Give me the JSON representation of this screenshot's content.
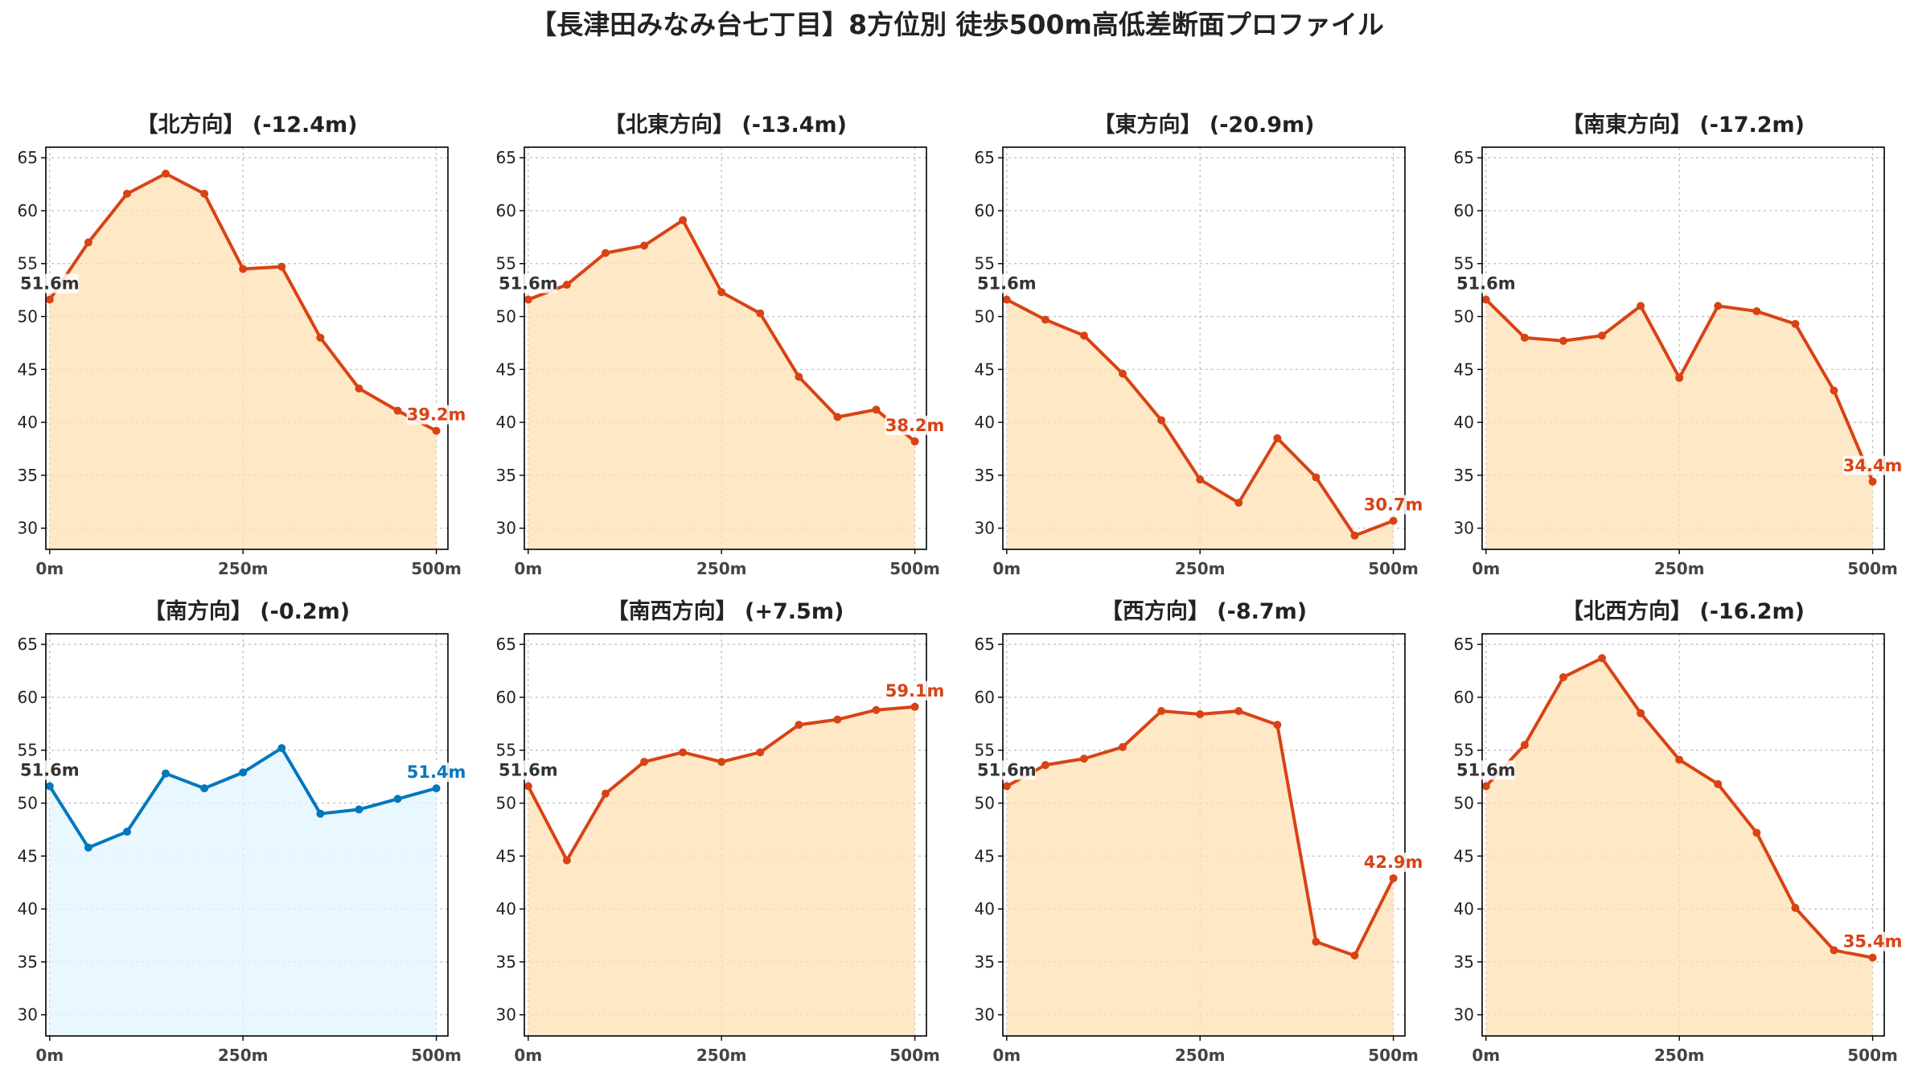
{
  "suptitle": "【長津田みなみ台七丁目】8方位別 徒歩500m高低差断面プロファイル",
  "colors": {
    "down_line": "#D84315",
    "down_fill": "#FFE0B2",
    "up_line": "#D84315",
    "up_fill": "#FFE0B2",
    "flat_line": "#0277BD",
    "flat_fill": "#E1F5FE",
    "start_label": "#333333",
    "axis": "#000000",
    "grid": "#BDBDBD",
    "text": "#222222"
  },
  "chart_data": [
    {
      "type": "line",
      "title": "【北方向】 (-12.4m)",
      "x": [
        0,
        50,
        100,
        150,
        200,
        250,
        300,
        350,
        400,
        450,
        500
      ],
      "y": [
        51.6,
        57.0,
        61.6,
        63.5,
        61.6,
        54.5,
        54.7,
        48.0,
        43.2,
        41.1,
        39.2
      ],
      "start_label": "51.6m",
      "end_label": "39.2m",
      "trend": "down",
      "xlim": [
        -5,
        515
      ],
      "ylim": [
        28,
        66
      ],
      "xticks": [
        0,
        250,
        500
      ],
      "xtick_labels": [
        "0m",
        "250m",
        "500m"
      ],
      "yticks": [
        30,
        35,
        40,
        45,
        50,
        55,
        60,
        65
      ],
      "grid": true
    },
    {
      "type": "line",
      "title": "【北東方向】 (-13.4m)",
      "x": [
        0,
        50,
        100,
        150,
        200,
        250,
        300,
        350,
        400,
        450,
        500
      ],
      "y": [
        51.6,
        53.0,
        56.0,
        56.7,
        59.1,
        52.3,
        50.3,
        44.3,
        40.5,
        41.2,
        38.2
      ],
      "start_label": "51.6m",
      "end_label": "38.2m",
      "trend": "down",
      "xlim": [
        -5,
        515
      ],
      "ylim": [
        28,
        66
      ],
      "xticks": [
        0,
        250,
        500
      ],
      "xtick_labels": [
        "0m",
        "250m",
        "500m"
      ],
      "yticks": [
        30,
        35,
        40,
        45,
        50,
        55,
        60,
        65
      ],
      "grid": true
    },
    {
      "type": "line",
      "title": "【東方向】 (-20.9m)",
      "x": [
        0,
        50,
        100,
        150,
        200,
        250,
        300,
        350,
        400,
        450,
        500
      ],
      "y": [
        51.6,
        49.7,
        48.2,
        44.6,
        40.2,
        34.6,
        32.4,
        38.5,
        34.8,
        29.3,
        30.7
      ],
      "start_label": "51.6m",
      "end_label": "30.7m",
      "trend": "down",
      "xlim": [
        -5,
        515
      ],
      "ylim": [
        28,
        66
      ],
      "xticks": [
        0,
        250,
        500
      ],
      "xtick_labels": [
        "0m",
        "250m",
        "500m"
      ],
      "yticks": [
        30,
        35,
        40,
        45,
        50,
        55,
        60,
        65
      ],
      "grid": true
    },
    {
      "type": "line",
      "title": "【南東方向】 (-17.2m)",
      "x": [
        0,
        50,
        100,
        150,
        200,
        250,
        300,
        350,
        400,
        450,
        500
      ],
      "y": [
        51.6,
        48.0,
        47.7,
        48.2,
        51.0,
        44.2,
        51.0,
        50.5,
        49.3,
        43.0,
        34.4
      ],
      "start_label": "51.6m",
      "end_label": "34.4m",
      "trend": "down",
      "xlim": [
        -5,
        515
      ],
      "ylim": [
        28,
        66
      ],
      "xticks": [
        0,
        250,
        500
      ],
      "xtick_labels": [
        "0m",
        "250m",
        "500m"
      ],
      "yticks": [
        30,
        35,
        40,
        45,
        50,
        55,
        60,
        65
      ],
      "grid": true
    },
    {
      "type": "line",
      "title": "【南方向】 (-0.2m)",
      "x": [
        0,
        50,
        100,
        150,
        200,
        250,
        300,
        350,
        400,
        450,
        500
      ],
      "y": [
        51.6,
        45.8,
        47.3,
        52.8,
        51.4,
        52.9,
        55.2,
        49.0,
        49.4,
        50.4,
        51.4
      ],
      "start_label": "51.6m",
      "end_label": "51.4m",
      "trend": "flat",
      "xlim": [
        -5,
        515
      ],
      "ylim": [
        28,
        66
      ],
      "xticks": [
        0,
        250,
        500
      ],
      "xtick_labels": [
        "0m",
        "250m",
        "500m"
      ],
      "yticks": [
        30,
        35,
        40,
        45,
        50,
        55,
        60,
        65
      ],
      "grid": true
    },
    {
      "type": "line",
      "title": "【南西方向】 (+7.5m)",
      "x": [
        0,
        50,
        100,
        150,
        200,
        250,
        300,
        350,
        400,
        450,
        500
      ],
      "y": [
        51.6,
        44.6,
        50.9,
        53.9,
        54.8,
        53.9,
        54.8,
        57.4,
        57.9,
        58.8,
        59.1
      ],
      "start_label": "51.6m",
      "end_label": "59.1m",
      "trend": "up",
      "xlim": [
        -5,
        515
      ],
      "ylim": [
        28,
        66
      ],
      "xticks": [
        0,
        250,
        500
      ],
      "xtick_labels": [
        "0m",
        "250m",
        "500m"
      ],
      "yticks": [
        30,
        35,
        40,
        45,
        50,
        55,
        60,
        65
      ],
      "grid": true
    },
    {
      "type": "line",
      "title": "【西方向】 (-8.7m)",
      "x": [
        0,
        50,
        100,
        150,
        200,
        250,
        300,
        350,
        400,
        450,
        500
      ],
      "y": [
        51.6,
        53.6,
        54.2,
        55.3,
        58.7,
        58.4,
        58.7,
        57.4,
        36.9,
        35.6,
        42.9
      ],
      "start_label": "51.6m",
      "end_label": "42.9m",
      "trend": "down",
      "xlim": [
        -5,
        515
      ],
      "ylim": [
        28,
        66
      ],
      "xticks": [
        0,
        250,
        500
      ],
      "xtick_labels": [
        "0m",
        "250m",
        "500m"
      ],
      "yticks": [
        30,
        35,
        40,
        45,
        50,
        55,
        60,
        65
      ],
      "grid": true
    },
    {
      "type": "line",
      "title": "【北西方向】 (-16.2m)",
      "x": [
        0,
        50,
        100,
        150,
        200,
        250,
        300,
        350,
        400,
        450,
        500
      ],
      "y": [
        51.6,
        55.5,
        61.9,
        63.7,
        58.5,
        54.1,
        51.8,
        47.2,
        40.1,
        36.1,
        35.4
      ],
      "start_label": "51.6m",
      "end_label": "35.4m",
      "trend": "down",
      "xlim": [
        -5,
        515
      ],
      "ylim": [
        28,
        66
      ],
      "xticks": [
        0,
        250,
        500
      ],
      "xtick_labels": [
        "0m",
        "250m",
        "500m"
      ],
      "yticks": [
        30,
        35,
        40,
        45,
        50,
        55,
        60,
        65
      ],
      "grid": true
    }
  ]
}
